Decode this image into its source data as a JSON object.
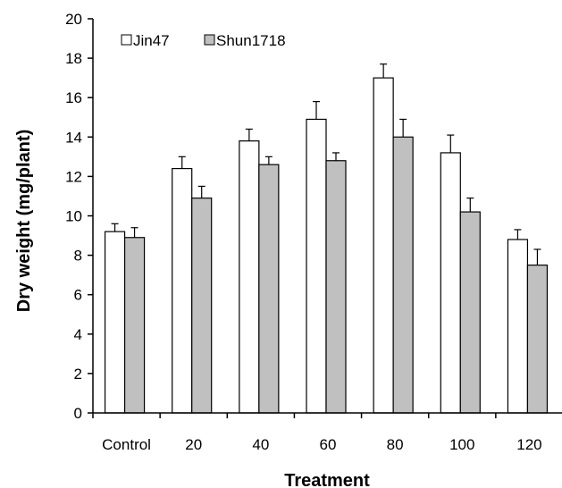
{
  "chart_data": {
    "type": "bar",
    "title": "",
    "xlabel": "Treatment",
    "ylabel": "Dry weight (mg/plant)",
    "ylim": [
      0,
      20
    ],
    "yticks": [
      0,
      2,
      4,
      6,
      8,
      10,
      12,
      14,
      16,
      18,
      20
    ],
    "categories": [
      "Control",
      "20",
      "40",
      "60",
      "80",
      "100",
      "120"
    ],
    "grid": false,
    "legend_position": "top-left",
    "error_bars": true,
    "series": [
      {
        "name": "Jin47",
        "color": "#ffffff",
        "values": [
          9.2,
          12.4,
          13.8,
          14.9,
          17.0,
          13.2,
          8.8
        ],
        "errors": [
          0.4,
          0.6,
          0.6,
          0.9,
          0.7,
          0.9,
          0.5
        ]
      },
      {
        "name": "Shun1718",
        "color": "#c0c0c0",
        "values": [
          8.9,
          10.9,
          12.6,
          12.8,
          14.0,
          10.2,
          7.5
        ],
        "errors": [
          0.5,
          0.6,
          0.4,
          0.4,
          0.9,
          0.7,
          0.8
        ]
      }
    ]
  }
}
